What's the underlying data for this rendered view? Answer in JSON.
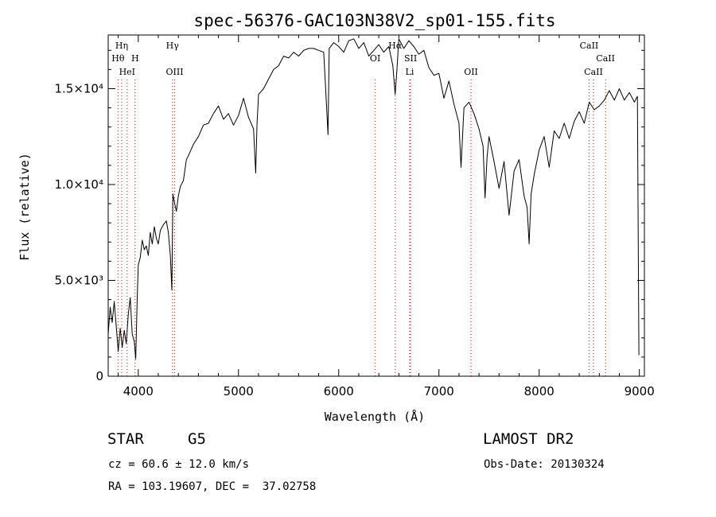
{
  "chart_data": {
    "type": "line",
    "title": "spec-56376-GAC103N38V2_sp01-155.fits",
    "xlabel": "Wavelength (Å)",
    "ylabel": "Flux (relative)",
    "xlim": [
      3700,
      9050
    ],
    "ylim": [
      0,
      17800
    ],
    "x_ticks": [
      {
        "value": 4000,
        "label": "4000"
      },
      {
        "value": 5000,
        "label": "5000"
      },
      {
        "value": 6000,
        "label": "6000"
      },
      {
        "value": 7000,
        "label": "7000"
      },
      {
        "value": 8000,
        "label": "8000"
      },
      {
        "value": 9000,
        "label": "9000"
      }
    ],
    "y_ticks": [
      {
        "value": 0,
        "label": "0"
      },
      {
        "value": 5000,
        "label": "5.0×10³"
      },
      {
        "value": 10000,
        "label": "1.0×10⁴"
      },
      {
        "value": 15000,
        "label": "1.5×10⁴"
      }
    ],
    "series": [
      {
        "x": [
          3700,
          3720,
          3740,
          3760,
          3780,
          3800,
          3820,
          3840,
          3860,
          3880,
          3900,
          3920,
          3940,
          3960,
          3975,
          3990,
          4000,
          4020,
          4040,
          4060,
          4080,
          4100,
          4120,
          4140,
          4160,
          4180,
          4200,
          4220,
          4250,
          4280,
          4300,
          4320,
          4335,
          4345,
          4360,
          4380,
          4400,
          4420,
          4450,
          4480,
          4500,
          4550,
          4600,
          4650,
          4700,
          4750,
          4800,
          4850,
          4900,
          4950,
          5000,
          5050,
          5100,
          5150,
          5172,
          5185,
          5200,
          5250,
          5300,
          5350,
          5400,
          5450,
          5500,
          5550,
          5600,
          5650,
          5700,
          5750,
          5800,
          5850,
          5880,
          5893,
          5905,
          5950,
          6000,
          6050,
          6100,
          6150,
          6200,
          6250,
          6300,
          6350,
          6400,
          6450,
          6500,
          6540,
          6563,
          6580,
          6600,
          6650,
          6700,
          6750,
          6800,
          6850,
          6900,
          6950,
          7000,
          7050,
          7100,
          7150,
          7200,
          7220,
          7250,
          7300,
          7350,
          7400,
          7440,
          7460,
          7480,
          7500,
          7550,
          7600,
          7650,
          7700,
          7750,
          7800,
          7850,
          7880,
          7900,
          7920,
          7950,
          8000,
          8050,
          8100,
          8150,
          8200,
          8250,
          8300,
          8350,
          8400,
          8450,
          8500,
          8550,
          8600,
          8650,
          8700,
          8750,
          8800,
          8850,
          8900,
          8950,
          8980,
          8995
        ],
        "y": [
          2200,
          3600,
          2800,
          3900,
          2600,
          1300,
          2500,
          1500,
          2400,
          1700,
          3200,
          4100,
          2200,
          1800,
          900,
          4100,
          5800,
          6200,
          7100,
          6600,
          6800,
          6300,
          7500,
          6900,
          7800,
          7200,
          6900,
          7600,
          7900,
          8100,
          7500,
          6300,
          4500,
          9500,
          9100,
          8600,
          9400,
          9900,
          10200,
          11300,
          11500,
          12100,
          12500,
          13100,
          13200,
          13700,
          14100,
          13400,
          13700,
          13100,
          13600,
          14500,
          13500,
          12900,
          10600,
          13200,
          14700,
          15000,
          15500,
          16000,
          16200,
          16700,
          16600,
          16900,
          16700,
          17000,
          17100,
          17100,
          17000,
          16900,
          14000,
          12600,
          17100,
          17400,
          17200,
          16900,
          17500,
          17600,
          17100,
          17400,
          16700,
          17000,
          17300,
          16900,
          17200,
          16200,
          14700,
          15900,
          17600,
          17100,
          17500,
          17200,
          16800,
          17000,
          16100,
          15700,
          15800,
          14500,
          15400,
          14200,
          13200,
          10900,
          14000,
          14300,
          13700,
          12900,
          12000,
          9300,
          11400,
          12500,
          11200,
          9800,
          11200,
          8400,
          10700,
          11300,
          9400,
          8800,
          6900,
          9500,
          10500,
          11800,
          12500,
          10900,
          12800,
          12400,
          13200,
          12400,
          13300,
          13800,
          13200,
          14300,
          13900,
          14100,
          14400,
          14900,
          14400,
          15000,
          14400,
          14800,
          14300,
          14600,
          1100
        ]
      }
    ],
    "line_markers": [
      {
        "name": "Hη",
        "x": 3835,
        "row": 1
      },
      {
        "name": "Hθ",
        "x": 3798,
        "row": 2
      },
      {
        "name": "H",
        "x": 3968,
        "row": 2
      },
      {
        "name": "HeI",
        "x": 3889,
        "row": 3
      },
      {
        "name": "Hγ",
        "x": 4341,
        "row": 1
      },
      {
        "name": "OIII",
        "x": 4363,
        "row": 3
      },
      {
        "name": "OI",
        "x": 6364,
        "row": 2
      },
      {
        "name": "Hα",
        "x": 6563,
        "row": 1
      },
      {
        "name": "SII",
        "x": 6717,
        "row": 2
      },
      {
        "name": "Li",
        "x": 6708,
        "row": 3
      },
      {
        "name": "OII",
        "x": 7320,
        "row": 3
      },
      {
        "name": "CaII",
        "x": 8498,
        "row": 1
      },
      {
        "name": "CaII",
        "x": 8662,
        "row": 2
      },
      {
        "name": "CaII",
        "x": 8542,
        "row": 3
      }
    ],
    "grid": false,
    "legend": "none"
  },
  "footer": {
    "object_type": "STAR",
    "subclass": "G5",
    "release": "LAMOST DR2",
    "redshift": "cz = 60.6 ± 12.0 km/s",
    "obs_date": "Obs-Date: 20130324",
    "coords": "RA = 103.19607, DEC =  37.02758"
  },
  "colors": {
    "line": "#000000",
    "markers": "#e00000",
    "axes": "#000000"
  }
}
